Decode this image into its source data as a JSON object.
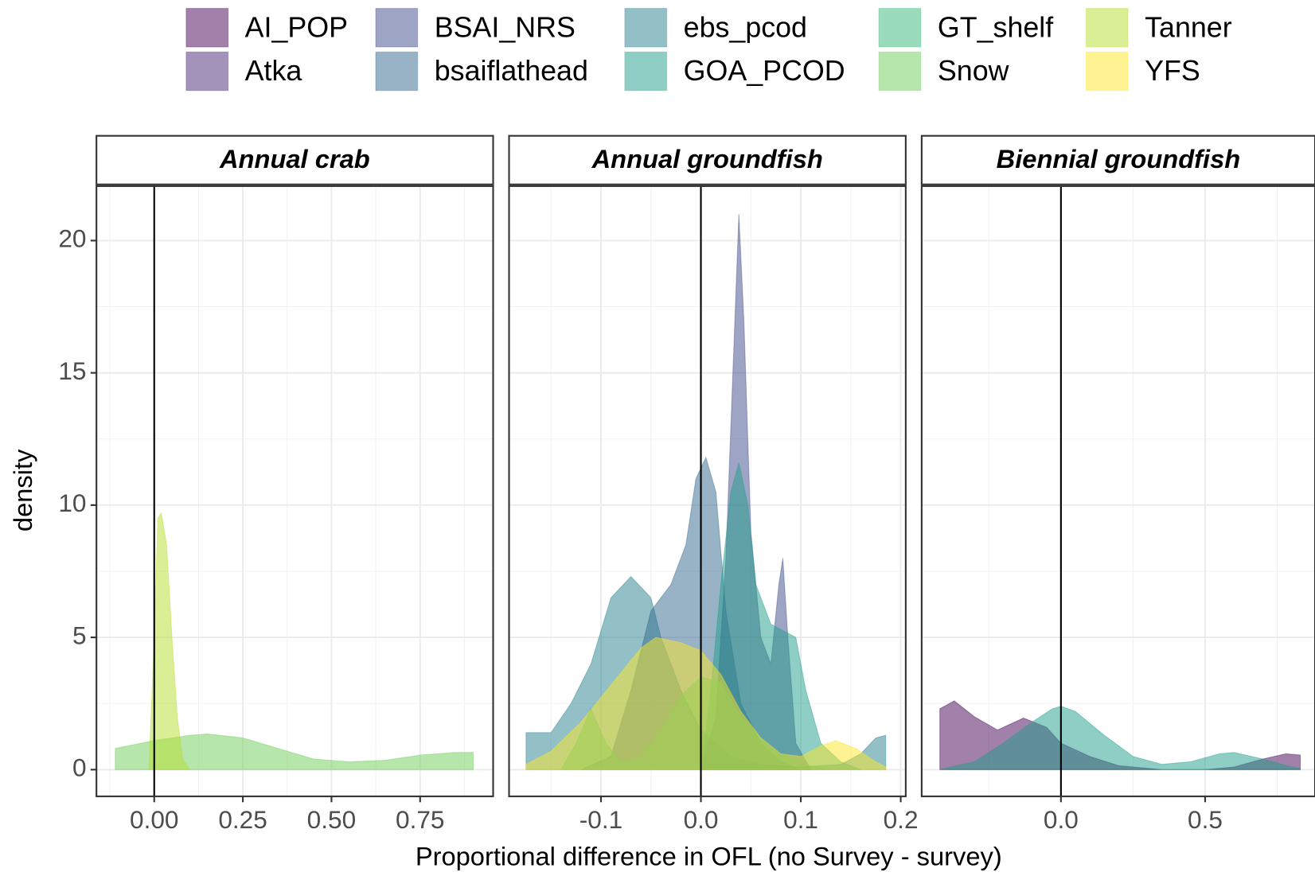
{
  "chart_data": {
    "type": "area",
    "x_label": "Proportional difference in OFL (no Survey - survey)",
    "y_label": "density",
    "grid": true,
    "legend_position": "top",
    "legend": [
      {
        "name": "AI_POP",
        "color": "#440154"
      },
      {
        "name": "Atka",
        "color": "#482878"
      },
      {
        "name": "BSAI_NRS",
        "color": "#3e4a89"
      },
      {
        "name": "bsaiflathead",
        "color": "#31688e"
      },
      {
        "name": "ebs_pcod",
        "color": "#26828e"
      },
      {
        "name": "GOA_PCOD",
        "color": "#1f9e89"
      },
      {
        "name": "GT_shelf",
        "color": "#35b779"
      },
      {
        "name": "Snow",
        "color": "#6ece58"
      },
      {
        "name": "Tanner",
        "color": "#b5de2b"
      },
      {
        "name": "YFS",
        "color": "#fde725"
      }
    ],
    "ylim": [
      -1.01,
      22.06
    ],
    "yticks": [
      0,
      5,
      10,
      15,
      20
    ],
    "facets": [
      {
        "title": "Annual crab",
        "xlim": [
          -0.163,
          0.956
        ],
        "vline": 0,
        "xticks": [
          {
            "value": 0,
            "label": "0.00"
          },
          {
            "value": 0.25,
            "label": "0.25"
          },
          {
            "value": 0.5,
            "label": "0.50"
          },
          {
            "value": 0.75,
            "label": "0.75"
          }
        ],
        "series": [
          {
            "name": "Snow",
            "x": [
              -0.11,
              0,
              0.1,
              0.15,
              0.25,
              0.35,
              0.45,
              0.55,
              0.65,
              0.75,
              0.85,
              0.9
            ],
            "values": [
              0.8,
              1.1,
              1.3,
              1.35,
              1.2,
              0.8,
              0.4,
              0.3,
              0.35,
              0.55,
              0.65,
              0.65
            ]
          },
          {
            "name": "Tanner",
            "x": [
              -0.015,
              0,
              0.01,
              0.02,
              0.035,
              0.05,
              0.065,
              0.08,
              0.1
            ],
            "values": [
              0,
              5,
              9.5,
              9.7,
              8.5,
              5,
              2,
              0.4,
              0
            ]
          }
        ]
      },
      {
        "title": "Annual groundfish",
        "xlim": [
          -0.192,
          0.205
        ],
        "vline": 0,
        "xticks": [
          -0.1,
          {
            "value": 0,
            "label": "0.0"
          },
          0.1,
          0.2
        ],
        "series": [
          {
            "name": "ebs_pcod",
            "x": [
              -0.175,
              -0.15,
              -0.13,
              -0.11,
              -0.09,
              -0.07,
              -0.05,
              -0.04,
              -0.02,
              0,
              0.03,
              0.06,
              0.1,
              0.14,
              0.16,
              0.175,
              0.185
            ],
            "values": [
              1.4,
              1.4,
              2.5,
              4,
              6.5,
              7.3,
              6.5,
              5,
              3,
              1.5,
              0.5,
              0.2,
              0.1,
              0.2,
              0.6,
              1.2,
              1.3
            ]
          },
          {
            "name": "bsaiflathead",
            "x": [
              -0.12,
              -0.09,
              -0.07,
              -0.05,
              -0.03,
              -0.015,
              -0.005,
              0.005,
              0.015,
              0.025,
              0.04,
              0.06,
              0.08,
              0.1
            ],
            "values": [
              0,
              0.5,
              3,
              6,
              7,
              8.5,
              11,
              11.8,
              10.5,
              6,
              2.5,
              1,
              0.3,
              0
            ]
          },
          {
            "name": "BSAI_NRS",
            "x": [
              0,
              0.015,
              0.025,
              0.033,
              0.038,
              0.043,
              0.05,
              0.06,
              0.07,
              0.078,
              0.082,
              0.087,
              0.095,
              0.11
            ],
            "values": [
              0,
              2,
              8,
              16,
              21,
              17,
              9,
              5,
              4,
              7,
              8,
              5,
              1,
              0
            ]
          },
          {
            "name": "GOA_PCOD",
            "x": [
              0,
              0.01,
              0.02,
              0.03,
              0.038,
              0.047,
              0.055,
              0.07,
              0.085,
              0.095,
              0.105,
              0.12,
              0.14,
              0.16
            ],
            "values": [
              0,
              3,
              7,
              10.5,
              11.6,
              10,
              7,
              5.5,
              5.2,
              5,
              3,
              1,
              0.3,
              0
            ]
          },
          {
            "name": "GT_shelf",
            "x": [
              -0.14,
              -0.125,
              -0.11,
              -0.095,
              -0.08,
              -0.06,
              -0.04,
              -0.02,
              0,
              0.02,
              0.04,
              0.07,
              0.1,
              0.13
            ],
            "values": [
              0,
              1,
              2.3,
              1,
              0.3,
              0.5,
              1.5,
              2.8,
              3.5,
              3.3,
              2,
              0.8,
              0.2,
              0
            ]
          },
          {
            "name": "YFS",
            "x": [
              -0.175,
              -0.15,
              -0.12,
              -0.09,
              -0.06,
              -0.045,
              -0.02,
              0,
              0.02,
              0.04,
              0.06,
              0.08,
              0.1,
              0.12,
              0.135,
              0.155,
              0.175,
              0.185
            ],
            "values": [
              0.2,
              0.7,
              1.8,
              3.2,
              4.6,
              5,
              4.8,
              4.5,
              3.6,
              2.2,
              1.2,
              0.6,
              0.5,
              0.9,
              1.1,
              0.8,
              0.3,
              0.1
            ]
          }
        ]
      },
      {
        "title": "Biennial groundfish",
        "xlim": [
          -0.483,
          0.881
        ],
        "vline": 0,
        "xticks": [
          {
            "value": 0,
            "label": "0.0"
          },
          0.5
        ],
        "series": [
          {
            "name": "AI_POP",
            "x": [
              -0.42,
              -0.37,
              -0.3,
              -0.22,
              -0.13,
              -0.05,
              0,
              0.1,
              0.2,
              0.35,
              0.5,
              0.6,
              0.7,
              0.78,
              0.83
            ],
            "values": [
              2.3,
              2.6,
              2,
              1.5,
              1.95,
              1.6,
              1,
              0.5,
              0.15,
              0,
              0,
              0.1,
              0.4,
              0.6,
              0.55
            ]
          },
          {
            "name": "GOA_PCOD",
            "x": [
              -0.42,
              -0.3,
              -0.2,
              -0.1,
              -0.03,
              0,
              0.05,
              0.15,
              0.25,
              0.35,
              0.45,
              0.55,
              0.6,
              0.7,
              0.8,
              0.83
            ],
            "values": [
              0,
              0.3,
              1,
              1.8,
              2.3,
              2.4,
              2.2,
              1.3,
              0.5,
              0.2,
              0.3,
              0.6,
              0.65,
              0.4,
              0.1,
              0.05
            ]
          }
        ]
      }
    ]
  }
}
